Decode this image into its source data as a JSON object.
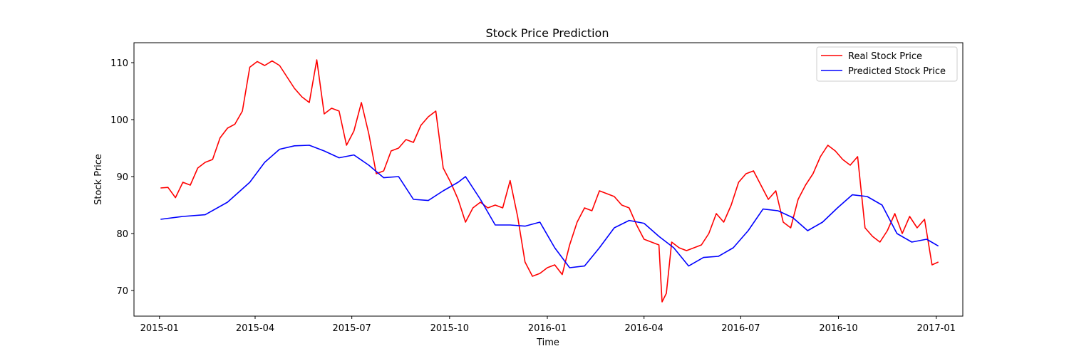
{
  "chart_data": {
    "type": "line",
    "title": "Stock Price Prediction",
    "xlabel": "Time",
    "ylabel": "Stock Price",
    "xlim": [
      "2014-12-08",
      "2017-01-26"
    ],
    "ylim": [
      65.5,
      113.5
    ],
    "x_ticks": [
      "2015-01",
      "2015-04",
      "2015-07",
      "2015-10",
      "2016-01",
      "2016-04",
      "2016-07",
      "2016-10",
      "2017-01"
    ],
    "y_ticks": [
      70,
      80,
      90,
      100,
      110
    ],
    "grid": false,
    "legend_position": "top-right",
    "series": [
      {
        "name": "Real Stock Price",
        "color": "#ff0000",
        "points": [
          [
            "2015-01-02",
            88.0
          ],
          [
            "2015-01-09",
            88.1
          ],
          [
            "2015-01-16",
            86.3
          ],
          [
            "2015-01-23",
            89.0
          ],
          [
            "2015-01-30",
            88.5
          ],
          [
            "2015-02-06",
            91.5
          ],
          [
            "2015-02-13",
            92.5
          ],
          [
            "2015-02-20",
            93.0
          ],
          [
            "2015-02-27",
            96.8
          ],
          [
            "2015-03-06",
            98.5
          ],
          [
            "2015-03-13",
            99.2
          ],
          [
            "2015-03-20",
            101.5
          ],
          [
            "2015-03-27",
            109.2
          ],
          [
            "2015-04-03",
            110.2
          ],
          [
            "2015-04-10",
            109.5
          ],
          [
            "2015-04-17",
            110.3
          ],
          [
            "2015-04-24",
            109.5
          ],
          [
            "2015-05-01",
            107.5
          ],
          [
            "2015-05-08",
            105.5
          ],
          [
            "2015-05-15",
            104.0
          ],
          [
            "2015-05-22",
            103.0
          ],
          [
            "2015-05-29",
            110.5
          ],
          [
            "2015-06-05",
            101.0
          ],
          [
            "2015-06-12",
            102.0
          ],
          [
            "2015-06-19",
            101.5
          ],
          [
            "2015-06-26",
            95.5
          ],
          [
            "2015-07-03",
            98.0
          ],
          [
            "2015-07-10",
            103.0
          ],
          [
            "2015-07-17",
            97.5
          ],
          [
            "2015-07-24",
            90.5
          ],
          [
            "2015-07-31",
            91.0
          ],
          [
            "2015-08-07",
            94.5
          ],
          [
            "2015-08-14",
            95.0
          ],
          [
            "2015-08-21",
            96.5
          ],
          [
            "2015-08-28",
            96.0
          ],
          [
            "2015-09-04",
            99.0
          ],
          [
            "2015-09-11",
            100.5
          ],
          [
            "2015-09-18",
            101.5
          ],
          [
            "2015-09-25",
            91.5
          ],
          [
            "2015-10-02",
            89.0
          ],
          [
            "2015-10-09",
            86.0
          ],
          [
            "2015-10-16",
            82.0
          ],
          [
            "2015-10-23",
            84.5
          ],
          [
            "2015-10-30",
            85.5
          ],
          [
            "2015-11-06",
            84.5
          ],
          [
            "2015-11-13",
            85.0
          ],
          [
            "2015-11-20",
            84.5
          ],
          [
            "2015-11-27",
            89.3
          ],
          [
            "2015-12-04",
            83.0
          ],
          [
            "2015-12-11",
            75.0
          ],
          [
            "2015-12-18",
            72.5
          ],
          [
            "2015-12-25",
            73.0
          ],
          [
            "2016-01-01",
            74.0
          ],
          [
            "2016-01-08",
            74.5
          ],
          [
            "2016-01-15",
            72.8
          ],
          [
            "2016-01-22",
            78.0
          ],
          [
            "2016-01-29",
            82.0
          ],
          [
            "2016-02-05",
            84.5
          ],
          [
            "2016-02-12",
            84.0
          ],
          [
            "2016-02-19",
            87.5
          ],
          [
            "2016-02-26",
            87.0
          ],
          [
            "2016-03-04",
            86.5
          ],
          [
            "2016-03-11",
            85.0
          ],
          [
            "2016-03-18",
            84.5
          ],
          [
            "2016-03-25",
            81.5
          ],
          [
            "2016-04-01",
            79.0
          ],
          [
            "2016-04-08",
            78.5
          ],
          [
            "2016-04-15",
            78.0
          ],
          [
            "2016-04-18",
            68.0
          ],
          [
            "2016-04-22",
            69.5
          ],
          [
            "2016-04-27",
            78.5
          ],
          [
            "2016-05-04",
            77.5
          ],
          [
            "2016-05-11",
            77.0
          ],
          [
            "2016-05-18",
            77.5
          ],
          [
            "2016-05-25",
            78.0
          ],
          [
            "2016-06-01",
            80.0
          ],
          [
            "2016-06-08",
            83.5
          ],
          [
            "2016-06-15",
            82.0
          ],
          [
            "2016-06-22",
            85.0
          ],
          [
            "2016-06-29",
            89.0
          ],
          [
            "2016-07-06",
            90.5
          ],
          [
            "2016-07-13",
            91.0
          ],
          [
            "2016-07-20",
            88.5
          ],
          [
            "2016-07-27",
            86.0
          ],
          [
            "2016-08-03",
            87.5
          ],
          [
            "2016-08-10",
            82.0
          ],
          [
            "2016-08-17",
            81.0
          ],
          [
            "2016-08-24",
            86.0
          ],
          [
            "2016-08-31",
            88.5
          ],
          [
            "2016-09-07",
            90.5
          ],
          [
            "2016-09-14",
            93.5
          ],
          [
            "2016-09-21",
            95.5
          ],
          [
            "2016-09-28",
            94.5
          ],
          [
            "2016-10-05",
            93.0
          ],
          [
            "2016-10-12",
            92.0
          ],
          [
            "2016-10-19",
            93.5
          ],
          [
            "2016-10-26",
            81.0
          ],
          [
            "2016-11-02",
            79.5
          ],
          [
            "2016-11-09",
            78.5
          ],
          [
            "2016-11-16",
            80.5
          ],
          [
            "2016-11-23",
            83.5
          ],
          [
            "2016-11-30",
            80.0
          ],
          [
            "2016-12-07",
            83.0
          ],
          [
            "2016-12-14",
            81.0
          ],
          [
            "2016-12-21",
            82.5
          ],
          [
            "2016-12-28",
            74.5
          ],
          [
            "2017-01-03",
            75.0
          ]
        ]
      },
      {
        "name": "Predicted Stock Price",
        "color": "#0000ff",
        "points": [
          [
            "2015-01-02",
            82.5
          ],
          [
            "2015-01-23",
            83.0
          ],
          [
            "2015-02-13",
            83.3
          ],
          [
            "2015-03-06",
            85.5
          ],
          [
            "2015-03-27",
            89.0
          ],
          [
            "2015-04-10",
            92.5
          ],
          [
            "2015-04-24",
            94.8
          ],
          [
            "2015-05-08",
            95.4
          ],
          [
            "2015-05-22",
            95.5
          ],
          [
            "2015-06-05",
            94.5
          ],
          [
            "2015-06-19",
            93.3
          ],
          [
            "2015-07-03",
            93.8
          ],
          [
            "2015-07-17",
            92.0
          ],
          [
            "2015-07-31",
            89.8
          ],
          [
            "2015-08-14",
            90.0
          ],
          [
            "2015-08-28",
            86.0
          ],
          [
            "2015-09-11",
            85.8
          ],
          [
            "2015-09-25",
            87.5
          ],
          [
            "2015-10-09",
            89.0
          ],
          [
            "2015-10-16",
            90.0
          ],
          [
            "2015-10-30",
            86.0
          ],
          [
            "2015-11-13",
            81.5
          ],
          [
            "2015-11-27",
            81.5
          ],
          [
            "2015-12-11",
            81.3
          ],
          [
            "2015-12-25",
            82.0
          ],
          [
            "2016-01-08",
            77.5
          ],
          [
            "2016-01-22",
            74.0
          ],
          [
            "2016-02-05",
            74.3
          ],
          [
            "2016-02-19",
            77.5
          ],
          [
            "2016-03-04",
            81.0
          ],
          [
            "2016-03-18",
            82.3
          ],
          [
            "2016-04-01",
            81.8
          ],
          [
            "2016-04-15",
            79.5
          ],
          [
            "2016-04-29",
            77.5
          ],
          [
            "2016-05-13",
            74.3
          ],
          [
            "2016-05-27",
            75.8
          ],
          [
            "2016-06-10",
            76.0
          ],
          [
            "2016-06-24",
            77.5
          ],
          [
            "2016-07-08",
            80.5
          ],
          [
            "2016-07-22",
            84.3
          ],
          [
            "2016-08-05",
            84.0
          ],
          [
            "2016-08-19",
            82.8
          ],
          [
            "2016-09-02",
            80.5
          ],
          [
            "2016-09-16",
            82.0
          ],
          [
            "2016-09-30",
            84.5
          ],
          [
            "2016-10-14",
            86.8
          ],
          [
            "2016-10-28",
            86.5
          ],
          [
            "2016-11-11",
            85.0
          ],
          [
            "2016-11-25",
            80.0
          ],
          [
            "2016-12-09",
            78.5
          ],
          [
            "2016-12-23",
            79.0
          ],
          [
            "2017-01-03",
            77.8
          ]
        ]
      }
    ]
  }
}
